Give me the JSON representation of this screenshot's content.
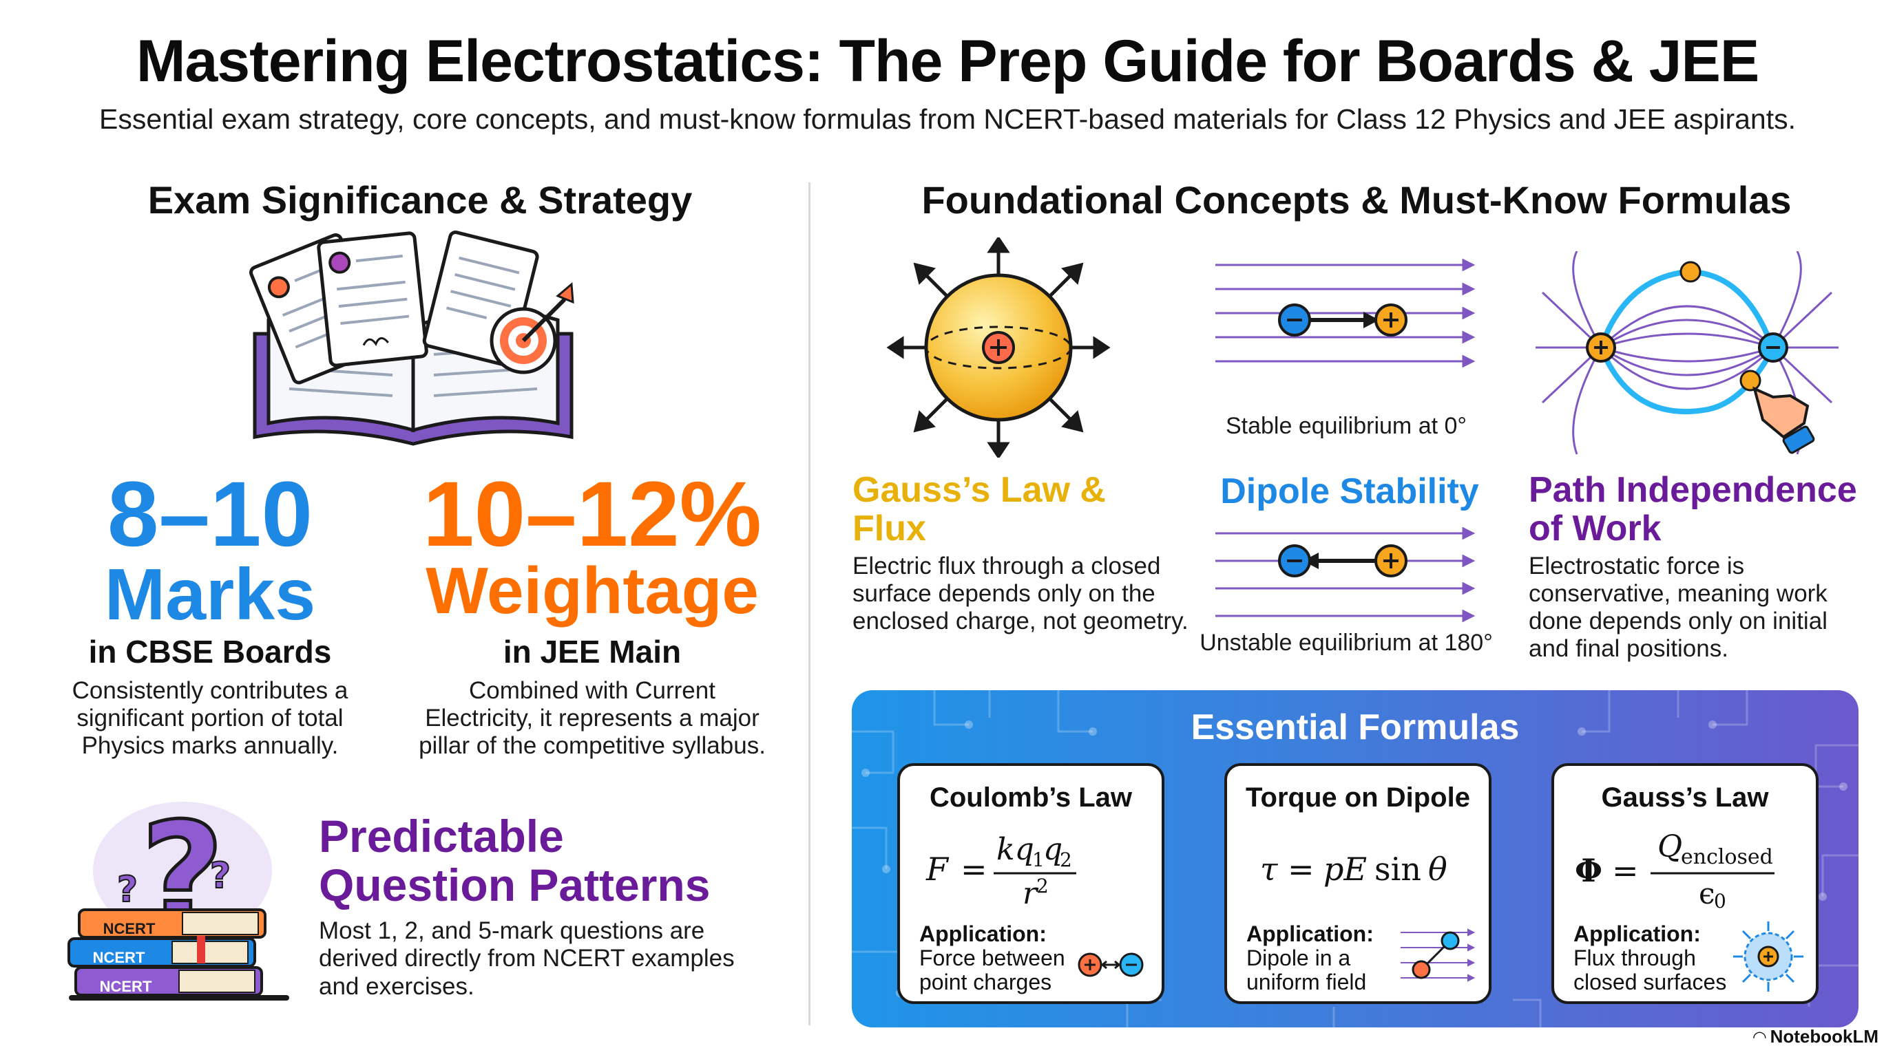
{
  "header": {
    "title": "Mastering Electrostatics: The Prep Guide for Boards & JEE",
    "subtitle": "Essential exam strategy, core concepts, and must-know formulas from NCERT-based materials for Class 12 Physics and JEE aspirants."
  },
  "left": {
    "heading": "Exam Significance & Strategy",
    "stat1": {
      "number": "8–10",
      "unit": "Marks",
      "context": "in CBSE Boards",
      "desc": [
        "Consistently contributes a",
        "significant portion of total",
        "Physics marks annually."
      ]
    },
    "stat2": {
      "number": "10–12%",
      "unit": "Weightage",
      "context": "in JEE Main",
      "desc": [
        "Combined with Current",
        "Electricity, it represents a major",
        "pillar of the competitive syllabus."
      ]
    },
    "patterns": {
      "title": [
        "Predictable",
        "Question Patterns"
      ],
      "desc": [
        "Most 1, 2, and 5-mark questions are",
        "derived directly from NCERT examples",
        "and exercises."
      ],
      "book_labels": [
        "NCERT",
        "NCERT",
        "NCERT"
      ]
    }
  },
  "right": {
    "heading": "Foundational Concepts & Must-Know Formulas",
    "gauss": {
      "title": [
        "Gauss’s Law &",
        "Flux"
      ],
      "desc": [
        "Electric flux through a closed",
        "surface depends only on the",
        "enclosed charge, not geometry."
      ]
    },
    "dipole": {
      "title": "Dipole Stability",
      "stable_caption": "Stable equilibrium at 0°",
      "unstable_caption": "Unstable equilibrium at 180°"
    },
    "path": {
      "title": [
        "Path Independence",
        "of Work"
      ],
      "desc": [
        "Electrostatic force is",
        "conservative, meaning work",
        "done depends only on initial",
        "and final positions."
      ]
    },
    "formulas": {
      "heading": "Essential Formulas",
      "cards": [
        {
          "title": "Coulomb’s Law",
          "application_label": "Application:",
          "application": [
            "Force between",
            "point charges"
          ]
        },
        {
          "title": "Torque on Dipole",
          "application_label": "Application:",
          "application": [
            "Dipole in a",
            "uniform field"
          ]
        },
        {
          "title": "Gauss’s Law",
          "application_label": "Application:",
          "application": [
            "Flux through",
            "closed surfaces"
          ]
        }
      ]
    }
  },
  "footer": {
    "brand": "NotebookLM"
  },
  "colors": {
    "blue": "#1e88e5",
    "orange": "#ff6f00",
    "purple": "#6a1b9a",
    "gold": "#e8b10a",
    "dipole_blue": "#1e88e5"
  }
}
